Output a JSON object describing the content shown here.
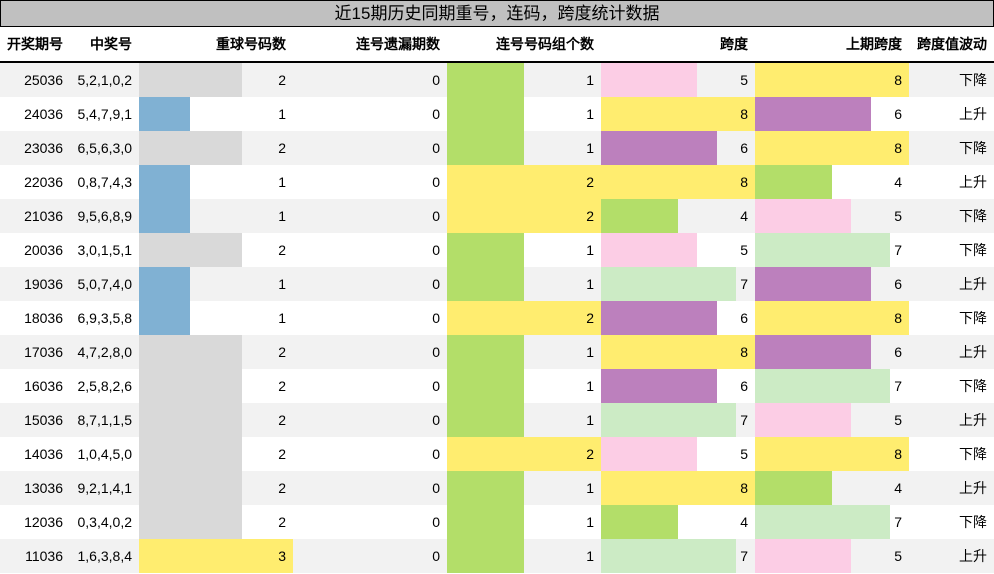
{
  "title": "近15期历史同期重号，连码，跨度统计数据",
  "headers": [
    "开奖期号",
    "中奖号",
    "重球号码数",
    "连号遗漏期数",
    "连号号码组个数",
    "跨度",
    "上期跨度",
    "跨度值波动"
  ],
  "rows": [
    [
      "25036",
      "5,2,1,0,2",
      2,
      0,
      1,
      5,
      8,
      "下降"
    ],
    [
      "24036",
      "5,4,7,9,1",
      1,
      0,
      1,
      8,
      6,
      "上升"
    ],
    [
      "23036",
      "6,5,6,3,0",
      2,
      0,
      1,
      6,
      8,
      "下降"
    ],
    [
      "22036",
      "0,8,7,4,3",
      1,
      0,
      2,
      8,
      4,
      "上升"
    ],
    [
      "21036",
      "9,5,6,8,9",
      1,
      0,
      2,
      4,
      5,
      "下降"
    ],
    [
      "20036",
      "3,0,1,5,1",
      2,
      0,
      1,
      5,
      7,
      "下降"
    ],
    [
      "19036",
      "5,0,7,4,0",
      1,
      0,
      1,
      7,
      6,
      "上升"
    ],
    [
      "18036",
      "6,9,3,5,8",
      1,
      0,
      2,
      6,
      8,
      "下降"
    ],
    [
      "17036",
      "4,7,2,8,0",
      2,
      0,
      1,
      8,
      6,
      "上升"
    ],
    [
      "16036",
      "2,5,8,2,6",
      2,
      0,
      1,
      6,
      7,
      "下降"
    ],
    [
      "15036",
      "8,7,1,1,5",
      2,
      0,
      1,
      7,
      5,
      "上升"
    ],
    [
      "14036",
      "1,0,4,5,0",
      2,
      0,
      2,
      5,
      8,
      "下降"
    ],
    [
      "13036",
      "9,2,1,4,1",
      2,
      0,
      1,
      8,
      4,
      "上升"
    ],
    [
      "12036",
      "0,3,4,0,2",
      2,
      0,
      1,
      4,
      7,
      "下降"
    ],
    [
      "11036",
      "1,6,3,8,4",
      3,
      0,
      1,
      7,
      5,
      "上升"
    ]
  ],
  "bar_colors": {
    "repeat": {
      "1": "#80b1d3",
      "2": "#d9d9d9",
      "3": "#ffed6f"
    },
    "groups": {
      "1": "#b3de69",
      "2": "#ffed6f"
    },
    "span": {
      "4": "#b3de69",
      "5": "#fccde5",
      "6": "#bc80bd",
      "7": "#ccebc5",
      "8": "#ffed6f"
    }
  },
  "bar_max": {
    "repeat": 3,
    "groups": 2,
    "span": 8
  }
}
